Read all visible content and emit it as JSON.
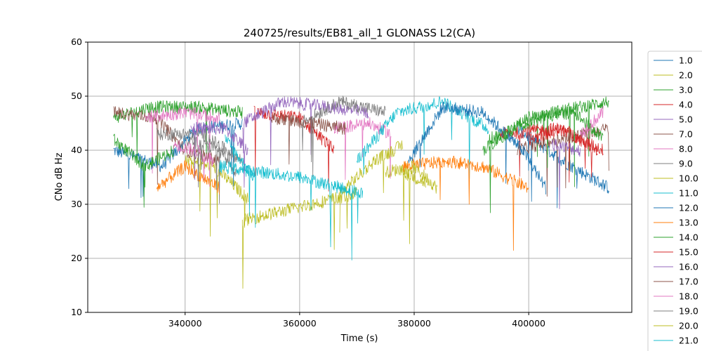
{
  "chart_data": {
    "type": "line",
    "title": "240725/results/EB81_all_1 GLONASS L2(CA)",
    "xlabel": "Time (s)",
    "ylabel": "CNo dB Hz",
    "xlim": [
      323000,
      418000
    ],
    "ylim": [
      10,
      60
    ],
    "x_ticks": [
      "340000",
      "360000",
      "380000",
      "400000"
    ],
    "y_ticks": [
      "10",
      "20",
      "30",
      "40",
      "50",
      "60"
    ],
    "grid": true,
    "legend_position": "outside-right",
    "series": [
      {
        "name": "1.0",
        "color": "#1f77b4",
        "segments": [
          [
            [
              327500,
              40
            ],
            [
              336000,
              37
            ],
            [
              342000,
              44
            ],
            [
              350000,
              45
            ]
          ],
          [
            [
              398000,
              44
            ],
            [
              406000,
              38
            ],
            [
              414000,
              33
            ]
          ]
        ]
      },
      {
        "name": "2.0",
        "color": "#bcbd22",
        "segments": [
          [
            [
              340000,
              38
            ],
            [
              345000,
              37
            ],
            [
              351000,
              31
            ]
          ],
          [
            [
              375000,
              36
            ],
            [
              380000,
              37
            ],
            [
              384000,
              33
            ]
          ]
        ]
      },
      {
        "name": "3.0",
        "color": "#2ca02c",
        "segments": [
          [
            [
              327500,
              46
            ],
            [
              334000,
              48
            ],
            [
              342000,
              48
            ],
            [
              350000,
              47
            ]
          ],
          [
            [
              393000,
              42
            ],
            [
              404000,
              47
            ],
            [
              414000,
              49
            ]
          ]
        ]
      },
      {
        "name": "4.0",
        "color": "#d62728",
        "segments": [
          [
            [
              352000,
              47
            ],
            [
              360000,
              46
            ],
            [
              366000,
              40
            ]
          ],
          [
            [
              395000,
              43
            ],
            [
              405000,
              44
            ],
            [
              413000,
              40
            ]
          ]
        ]
      },
      {
        "name": "5.0",
        "color": "#9467bd",
        "segments": [
          [
            [
              350000,
              45
            ],
            [
              357000,
              49
            ],
            [
              365000,
              48
            ],
            [
              372000,
              47
            ]
          ]
        ]
      },
      {
        "name": "7.0",
        "color": "#8c564b",
        "segments": [
          [
            [
              327500,
              47
            ],
            [
              335000,
              46
            ],
            [
              340000,
              40
            ],
            [
              346000,
              38
            ]
          ],
          [
            [
              398000,
              40
            ],
            [
              405000,
              42
            ],
            [
              414000,
              44
            ]
          ]
        ]
      },
      {
        "name": "8.0",
        "color": "#e377c2",
        "segments": [
          [
            [
              333000,
              46
            ],
            [
              340000,
              47
            ],
            [
              346000,
              46
            ]
          ],
          [
            [
              366000,
              44
            ],
            [
              372000,
              45
            ],
            [
              376000,
              43
            ]
          ]
        ]
      },
      {
        "name": "9.0",
        "color": "#7f7f7f",
        "segments": [
          [
            [
              335000,
              43
            ],
            [
              343000,
              43
            ],
            [
              350000,
              38
            ]
          ],
          [
            [
              360000,
              45
            ],
            [
              367000,
              49
            ],
            [
              375000,
              47
            ]
          ]
        ]
      },
      {
        "name": "10.0",
        "color": "#bcbd22",
        "segments": [
          [
            [
              367000,
              32
            ],
            [
              373000,
              38
            ],
            [
              378000,
              41
            ]
          ],
          [
            [
              378000,
              36
            ],
            [
              382000,
              34
            ]
          ]
        ]
      },
      {
        "name": "11.0",
        "color": "#17becf",
        "segments": [
          [
            [
              347000,
              42
            ],
            [
              352000,
              35
            ]
          ],
          [
            [
              370000,
              38
            ],
            [
              377000,
              47
            ],
            [
              385000,
              49
            ],
            [
              393000,
              44
            ]
          ]
        ]
      },
      {
        "name": "12.0",
        "color": "#1f77b4",
        "segments": [
          [
            [
              379000,
              38
            ],
            [
              385000,
              48
            ],
            [
              392000,
              47
            ],
            [
              399000,
              40
            ],
            [
              403000,
              33
            ]
          ]
        ]
      },
      {
        "name": "13.0",
        "color": "#ff7f0e",
        "segments": [
          [
            [
              335000,
              33
            ],
            [
              340000,
              37
            ],
            [
              346000,
              33
            ]
          ],
          [
            [
              378000,
              37
            ],
            [
              386000,
              38
            ],
            [
              392000,
              37
            ],
            [
              400000,
              33
            ]
          ]
        ]
      },
      {
        "name": "14.0",
        "color": "#2ca02c",
        "segments": [
          [
            [
              327500,
              42
            ],
            [
              333000,
              37
            ],
            [
              338000,
              40
            ]
          ],
          [
            [
              392000,
              40
            ],
            [
              400000,
              46
            ],
            [
              408000,
              47
            ],
            [
              413000,
              42
            ]
          ]
        ]
      },
      {
        "name": "15.0",
        "color": "#d62728",
        "segments": [
          [
            [
              400000,
              42
            ],
            [
              406000,
              44
            ],
            [
              412000,
              40
            ]
          ]
        ]
      },
      {
        "name": "16.0",
        "color": "#9467bd",
        "segments": [
          [
            [
              341000,
              44
            ],
            [
              347000,
              44
            ],
            [
              351000,
              40
            ]
          ],
          [
            [
              404000,
              41
            ],
            [
              409000,
              40
            ]
          ]
        ]
      },
      {
        "name": "17.0",
        "color": "#8c564b",
        "segments": [
          [
            [
              355000,
              46
            ],
            [
              362000,
              45
            ],
            [
              368000,
              44
            ]
          ]
        ]
      },
      {
        "name": "18.0",
        "color": "#e377c2",
        "segments": [
          [
            [
              338000,
              41
            ],
            [
              342000,
              40
            ],
            [
              345000,
              38
            ]
          ],
          [
            [
              409000,
              43
            ],
            [
              413000,
              47
            ]
          ]
        ]
      },
      {
        "name": "19.0",
        "color": "#7f7f7f",
        "segments": [
          [
            [
              340000,
              42
            ],
            [
              346000,
              40
            ],
            [
              349000,
              36
            ]
          ]
        ]
      },
      {
        "name": "20.0",
        "color": "#bcbd22",
        "segments": [
          [
            [
              350000,
              27
            ],
            [
              362000,
              30
            ],
            [
              370000,
              32
            ]
          ]
        ]
      },
      {
        "name": "21.0",
        "color": "#17becf",
        "segments": [
          [
            [
              346000,
              37
            ],
            [
              360000,
              35
            ],
            [
              371000,
              32
            ]
          ]
        ]
      }
    ]
  }
}
